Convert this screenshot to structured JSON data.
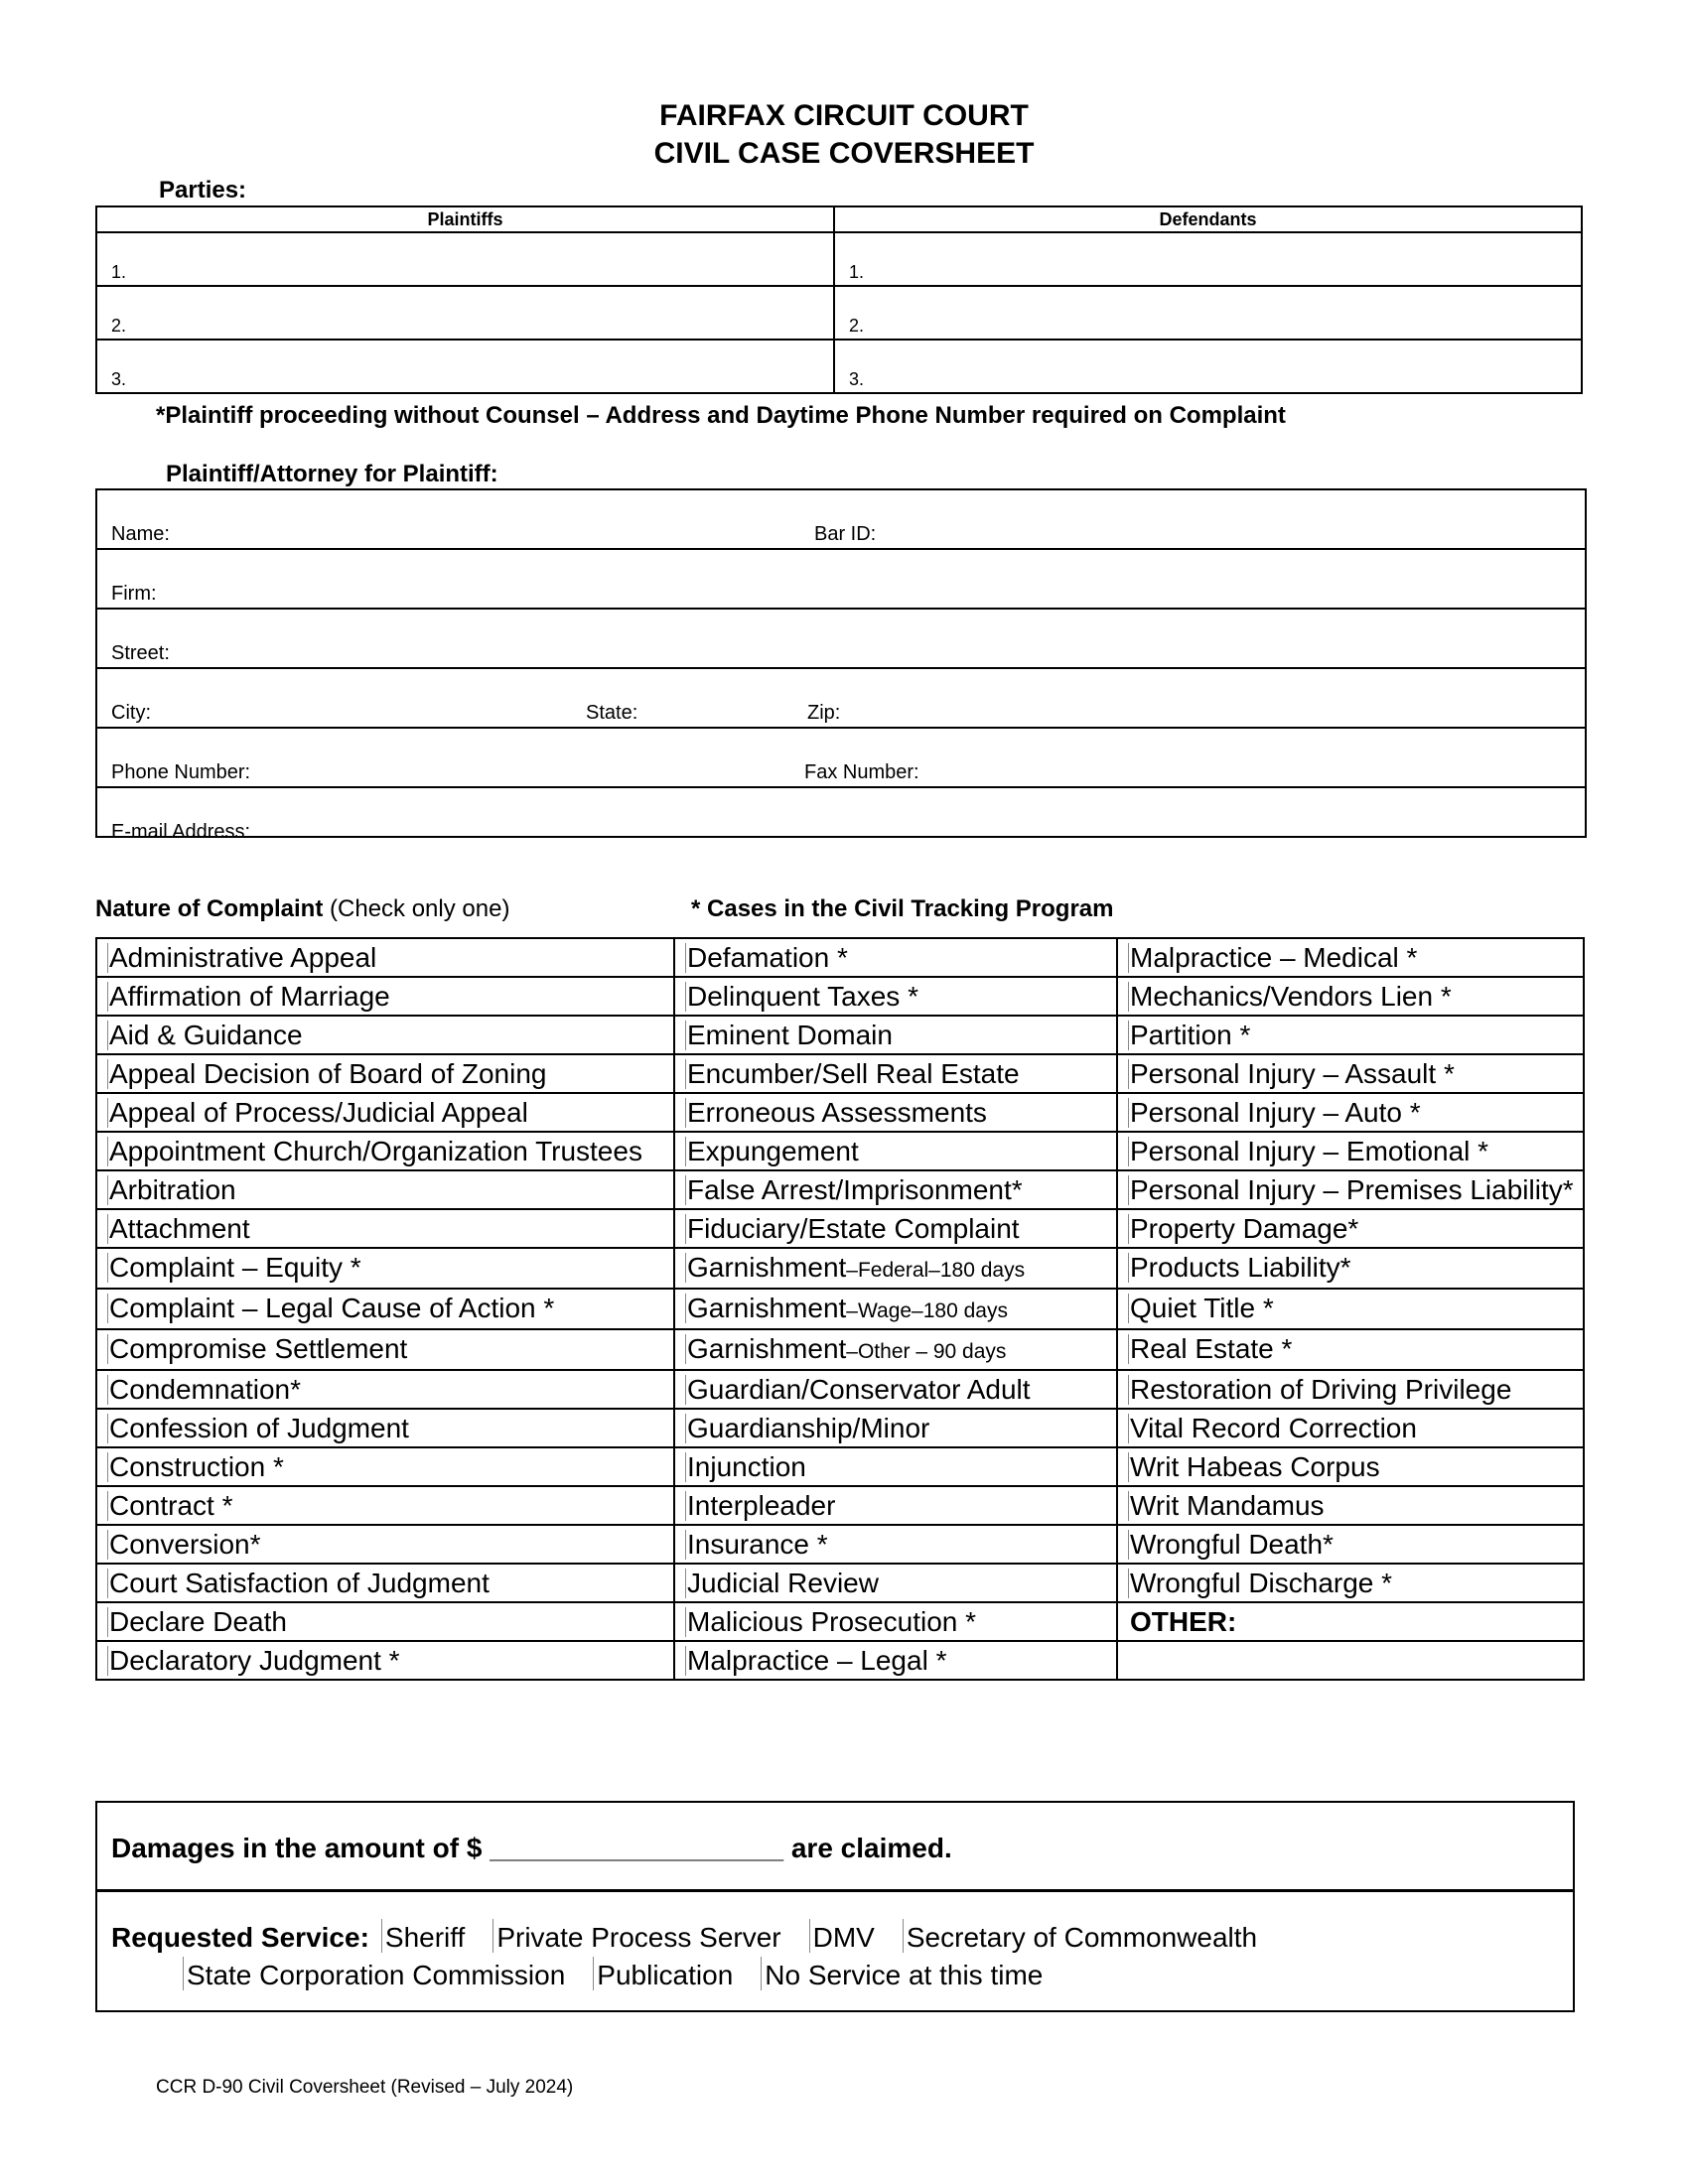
{
  "header": {
    "line1": "FAIRFAX CIRCUIT COURT",
    "line2": "CIVIL CASE COVERSHEET"
  },
  "parties": {
    "label": "Parties:",
    "plaintiffs_header": "Plaintiffs",
    "defendants_header": "Defendants",
    "rows": [
      "1.",
      "2.",
      "3."
    ]
  },
  "note": "*Plaintiff proceeding without Counsel – Address and Daytime Phone Number required on Complaint",
  "attorney": {
    "label": "Plaintiff/Attorney for Plaintiff:",
    "name": "Name:",
    "bar_id": "Bar ID:",
    "firm": "Firm:",
    "street": "Street:",
    "city": "City:",
    "state": "State:",
    "zip": "Zip:",
    "phone": "Phone Number:",
    "fax": "Fax Number:",
    "email": "E-mail Address:"
  },
  "complaint": {
    "label": "Nature of Complaint",
    "hint": "(Check only one)",
    "tracking_note": "* Cases in the Civil Tracking Program",
    "rows": [
      [
        {
          "t": "Administrative Appeal"
        },
        {
          "t": "Defamation *"
        },
        {
          "t": "Malpractice – Medical *"
        }
      ],
      [
        {
          "t": "Affirmation of Marriage"
        },
        {
          "t": "Delinquent Taxes *"
        },
        {
          "t": "Mechanics/Vendors Lien *"
        }
      ],
      [
        {
          "t": "Aid & Guidance"
        },
        {
          "t": "Eminent Domain"
        },
        {
          "t": "Partition *"
        }
      ],
      [
        {
          "t": "Appeal Decision of Board of Zoning"
        },
        {
          "t": "Encumber/Sell Real Estate"
        },
        {
          "t": "Personal Injury – Assault *"
        }
      ],
      [
        {
          "t": "Appeal of Process/Judicial Appeal"
        },
        {
          "t": "Erroneous Assessments"
        },
        {
          "t": "Personal Injury – Auto *"
        }
      ],
      [
        {
          "t": "Appointment Church/Organization Trustees"
        },
        {
          "t": "Expungement"
        },
        {
          "t": "Personal Injury – Emotional *"
        }
      ],
      [
        {
          "t": "Arbitration"
        },
        {
          "t": "False Arrest/Imprisonment*"
        },
        {
          "t": "Personal Injury – Premises Liability*"
        }
      ],
      [
        {
          "t": "Attachment"
        },
        {
          "t": "Fiduciary/Estate Complaint"
        },
        {
          "t": "Property Damage*"
        }
      ],
      [
        {
          "t": "Complaint – Equity  *"
        },
        {
          "t": "Garnishment",
          "s": "–Federal–180 days"
        },
        {
          "t": "Products Liability*"
        }
      ],
      [
        {
          "t": "Complaint – Legal Cause of Action *"
        },
        {
          "t": "Garnishment",
          "s": "–Wage–180 days"
        },
        {
          "t": "Quiet Title *"
        }
      ],
      [
        {
          "t": "Compromise Settlement"
        },
        {
          "t": "Garnishment",
          "s": "–Other – 90 days"
        },
        {
          "t": "Real Estate *"
        }
      ],
      [
        {
          "t": "Condemnation*"
        },
        {
          "t": "Guardian/Conservator Adult"
        },
        {
          "t": "Restoration of Driving Privilege"
        }
      ],
      [
        {
          "t": "Confession of Judgment"
        },
        {
          "t": "Guardianship/Minor"
        },
        {
          "t": "Vital Record Correction"
        }
      ],
      [
        {
          "t": "Construction  *"
        },
        {
          "t": "Injunction"
        },
        {
          "t": "Writ Habeas Corpus"
        }
      ],
      [
        {
          "t": "Contract *"
        },
        {
          "t": "Interpleader"
        },
        {
          "t": "Writ Mandamus"
        }
      ],
      [
        {
          "t": "Conversion*"
        },
        {
          "t": "Insurance *"
        },
        {
          "t": "Wrongful Death*"
        }
      ],
      [
        {
          "t": "Court Satisfaction of Judgment"
        },
        {
          "t": "Judicial Review"
        },
        {
          "t": "Wrongful Discharge *"
        }
      ],
      [
        {
          "t": "Declare Death"
        },
        {
          "t": "Malicious Prosecution *"
        },
        {
          "t": "OTHER:",
          "bold": true
        }
      ],
      [
        {
          "t": "Declaratory Judgment *"
        },
        {
          "t": "Malpractice – Legal *"
        },
        {
          "t": ""
        }
      ]
    ]
  },
  "damages": {
    "prefix": "Damages in the amount of $",
    "blank": "___________________",
    "suffix": "are claimed."
  },
  "service": {
    "label": "Requested Service:",
    "line1": [
      "Sheriff",
      "Private Process Server",
      "DMV",
      "Secretary of Commonwealth"
    ],
    "line2": [
      "State Corporation Commission",
      "Publication",
      "No Service at this time"
    ]
  },
  "footer": "CCR D-90 Civil Coversheet  (Revised – July 2024)"
}
